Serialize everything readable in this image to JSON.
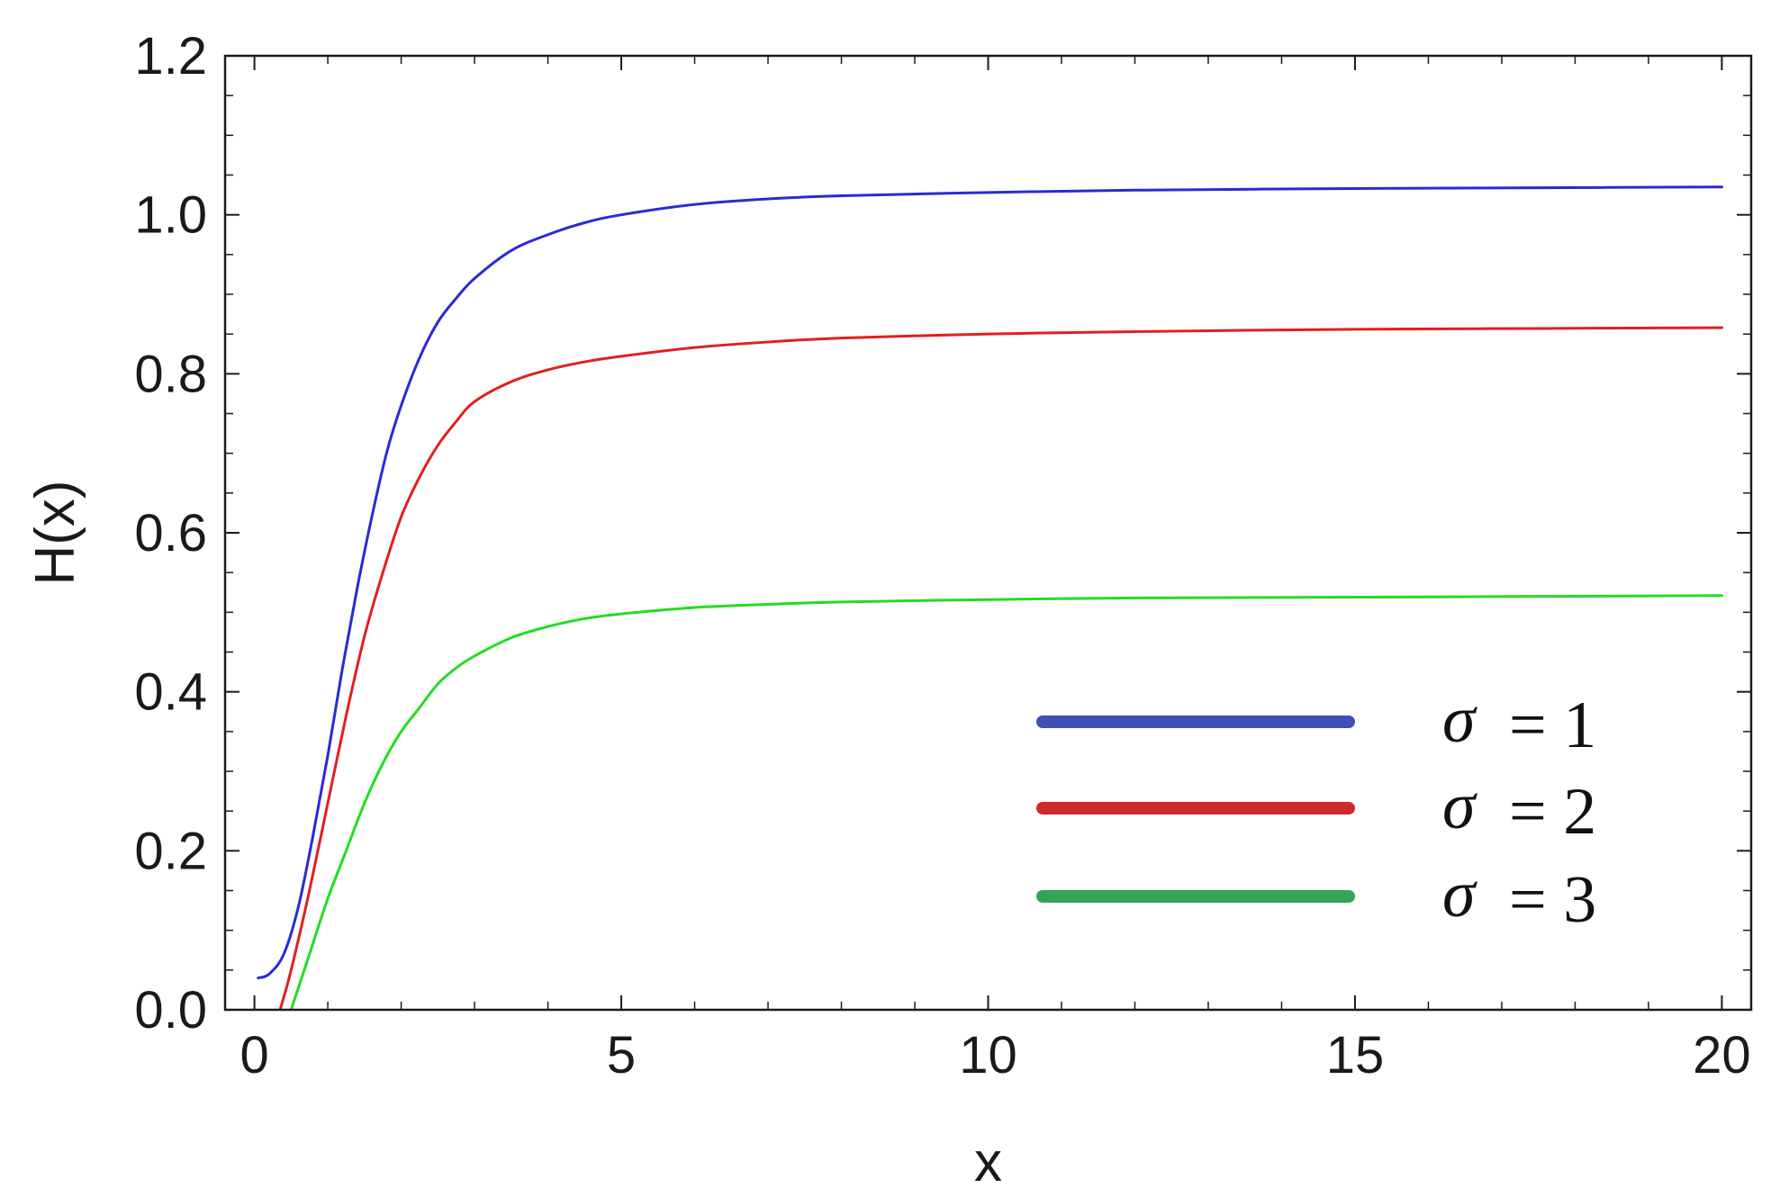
{
  "chart_data": {
    "type": "line",
    "title": "",
    "xlabel": "x",
    "ylabel": "H(x)",
    "xlim": [
      -0.4,
      20.4
    ],
    "ylim": [
      0.0,
      1.2
    ],
    "x_ticks": [
      0,
      5,
      10,
      15,
      20
    ],
    "x_tick_labels": [
      "0",
      "5",
      "10",
      "15",
      "20"
    ],
    "y_ticks": [
      0.0,
      0.2,
      0.4,
      0.6,
      0.8,
      1.0,
      1.2
    ],
    "y_tick_labels": [
      "0.0",
      "0.2",
      "0.4",
      "0.6",
      "0.8",
      "1.0",
      "1.2"
    ],
    "grid": false,
    "legend_position": "lower-right",
    "series": [
      {
        "name": "σ = 1",
        "legend_symbol": "σ",
        "legend_value": "= 1",
        "color": "#2a2ad6",
        "legend_color": "#3f4fb8",
        "x": [
          0.05,
          0.2,
          0.4,
          0.6,
          0.8,
          1.0,
          1.2,
          1.4,
          1.6,
          1.8,
          2.0,
          2.25,
          2.5,
          2.75,
          3.0,
          3.5,
          4.0,
          4.5,
          5.0,
          6.0,
          7.0,
          8.0,
          10.0,
          12.0,
          15.0,
          17.5,
          20.0
        ],
        "y": [
          0.04,
          0.045,
          0.07,
          0.13,
          0.22,
          0.32,
          0.43,
          0.53,
          0.62,
          0.7,
          0.76,
          0.82,
          0.865,
          0.895,
          0.92,
          0.955,
          0.975,
          0.99,
          1.0,
          1.013,
          1.02,
          1.024,
          1.028,
          1.031,
          1.033,
          1.034,
          1.035
        ]
      },
      {
        "name": "σ = 2",
        "legend_symbol": "σ",
        "legend_value": "= 2",
        "color": "#e02020",
        "legend_color": "#cc2a2f",
        "x": [
          0.35,
          0.5,
          0.75,
          1.0,
          1.25,
          1.5,
          1.75,
          2.0,
          2.25,
          2.5,
          2.75,
          3.0,
          3.5,
          4.0,
          4.5,
          5.0,
          6.0,
          7.0,
          8.0,
          10.0,
          12.0,
          15.0,
          17.5,
          20.0
        ],
        "y": [
          0.0,
          0.05,
          0.15,
          0.26,
          0.37,
          0.47,
          0.55,
          0.62,
          0.67,
          0.71,
          0.74,
          0.765,
          0.79,
          0.805,
          0.815,
          0.822,
          0.833,
          0.84,
          0.845,
          0.85,
          0.853,
          0.856,
          0.857,
          0.858
        ]
      },
      {
        "name": "σ = 3",
        "legend_symbol": "σ",
        "legend_value": "= 3",
        "color": "#22dd22",
        "legend_color": "#33a357",
        "x": [
          0.5,
          0.75,
          1.0,
          1.25,
          1.5,
          1.75,
          2.0,
          2.25,
          2.5,
          2.75,
          3.0,
          3.5,
          4.0,
          4.5,
          5.0,
          6.0,
          7.0,
          8.0,
          10.0,
          12.0,
          15.0,
          17.5,
          20.0
        ],
        "y": [
          0.0,
          0.07,
          0.14,
          0.2,
          0.26,
          0.31,
          0.35,
          0.38,
          0.41,
          0.43,
          0.445,
          0.468,
          0.482,
          0.492,
          0.498,
          0.506,
          0.51,
          0.513,
          0.516,
          0.518,
          0.519,
          0.52,
          0.521
        ]
      }
    ]
  }
}
